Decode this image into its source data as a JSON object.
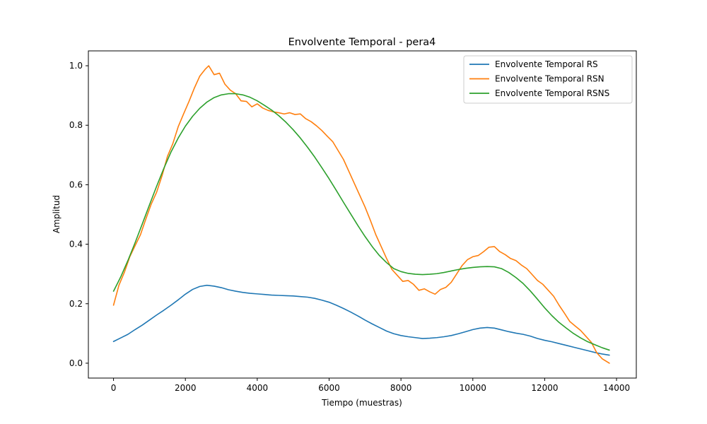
{
  "chart_data": {
    "type": "line",
    "title": "Envolvente Temporal - pera4",
    "xlabel": "Tiempo (muestras)",
    "ylabel": "Amplitud",
    "xlim": [
      -700,
      14550
    ],
    "ylim": [
      -0.05,
      1.05
    ],
    "xticks": [
      0,
      2000,
      4000,
      6000,
      8000,
      10000,
      12000,
      14000
    ],
    "xtick_labels": [
      "0",
      "2000",
      "4000",
      "6000",
      "8000",
      "10000",
      "12000",
      "14000"
    ],
    "yticks": [
      0.0,
      0.2,
      0.4,
      0.6,
      0.8,
      1.0
    ],
    "ytick_labels": [
      "0.0",
      "0.2",
      "0.4",
      "0.6",
      "0.8",
      "1.0"
    ],
    "grid": false,
    "legend_position": "top-right",
    "series": [
      {
        "name": "Envolvente Temporal RS",
        "color": "#1f77b4",
        "x": [
          0,
          200,
          400,
          600,
          800,
          1000,
          1200,
          1400,
          1600,
          1800,
          2000,
          2200,
          2400,
          2600,
          2800,
          3000,
          3200,
          3400,
          3600,
          3800,
          4000,
          4200,
          4400,
          4600,
          4800,
          5000,
          5200,
          5400,
          5600,
          5800,
          6000,
          6200,
          6400,
          6600,
          6800,
          7000,
          7200,
          7400,
          7600,
          7800,
          8000,
          8200,
          8400,
          8600,
          8800,
          9000,
          9200,
          9400,
          9600,
          9800,
          10000,
          10200,
          10400,
          10600,
          10800,
          11000,
          11200,
          11400,
          11600,
          11800,
          12000,
          12200,
          12400,
          12600,
          12800,
          13000,
          13200,
          13400,
          13600,
          13800
        ],
        "values": [
          0.073,
          0.085,
          0.097,
          0.113,
          0.128,
          0.145,
          0.162,
          0.178,
          0.195,
          0.213,
          0.232,
          0.248,
          0.258,
          0.262,
          0.259,
          0.254,
          0.247,
          0.242,
          0.238,
          0.235,
          0.233,
          0.231,
          0.229,
          0.228,
          0.227,
          0.226,
          0.224,
          0.222,
          0.218,
          0.212,
          0.205,
          0.195,
          0.184,
          0.172,
          0.159,
          0.145,
          0.132,
          0.12,
          0.108,
          0.099,
          0.093,
          0.089,
          0.086,
          0.083,
          0.084,
          0.086,
          0.089,
          0.093,
          0.099,
          0.106,
          0.113,
          0.118,
          0.12,
          0.118,
          0.112,
          0.106,
          0.101,
          0.097,
          0.091,
          0.083,
          0.077,
          0.072,
          0.066,
          0.06,
          0.054,
          0.048,
          0.042,
          0.036,
          0.031,
          0.027
        ]
      },
      {
        "name": "Envolvente Temporal RSN",
        "color": "#ff7f0e",
        "x": [
          0,
          150,
          300,
          450,
          600,
          750,
          900,
          1050,
          1200,
          1350,
          1500,
          1650,
          1800,
          1950,
          2100,
          2250,
          2400,
          2550,
          2650,
          2800,
          2950,
          3100,
          3250,
          3400,
          3550,
          3700,
          3850,
          4000,
          4150,
          4300,
          4450,
          4600,
          4750,
          4900,
          5050,
          5200,
          5350,
          5500,
          5650,
          5800,
          5950,
          6100,
          6250,
          6400,
          6550,
          6700,
          6850,
          7000,
          7150,
          7300,
          7450,
          7600,
          7750,
          7900,
          8050,
          8200,
          8350,
          8500,
          8650,
          8800,
          8950,
          9100,
          9250,
          9400,
          9550,
          9700,
          9850,
          10000,
          10150,
          10300,
          10450,
          10600,
          10750,
          10900,
          11050,
          11200,
          11350,
          11500,
          11650,
          11800,
          11950,
          12100,
          12250,
          12400,
          12550,
          12700,
          12850,
          13000,
          13150,
          13300,
          13450,
          13600,
          13800
        ],
        "values": [
          0.195,
          0.262,
          0.305,
          0.357,
          0.395,
          0.432,
          0.485,
          0.535,
          0.575,
          0.63,
          0.695,
          0.738,
          0.795,
          0.838,
          0.88,
          0.925,
          0.965,
          0.988,
          1.0,
          0.97,
          0.975,
          0.938,
          0.918,
          0.906,
          0.882,
          0.88,
          0.862,
          0.872,
          0.858,
          0.85,
          0.845,
          0.842,
          0.838,
          0.842,
          0.836,
          0.838,
          0.822,
          0.812,
          0.798,
          0.782,
          0.763,
          0.745,
          0.715,
          0.685,
          0.645,
          0.605,
          0.565,
          0.525,
          0.48,
          0.432,
          0.392,
          0.352,
          0.315,
          0.295,
          0.275,
          0.278,
          0.265,
          0.245,
          0.25,
          0.24,
          0.232,
          0.248,
          0.255,
          0.272,
          0.3,
          0.328,
          0.348,
          0.358,
          0.362,
          0.375,
          0.39,
          0.392,
          0.375,
          0.365,
          0.352,
          0.345,
          0.33,
          0.318,
          0.298,
          0.278,
          0.265,
          0.245,
          0.225,
          0.195,
          0.168,
          0.14,
          0.125,
          0.11,
          0.09,
          0.07,
          0.035,
          0.015,
          0.0
        ]
      },
      {
        "name": "Envolvente Temporal RSNS",
        "color": "#2ca02c",
        "x": [
          0,
          200,
          400,
          600,
          800,
          1000,
          1200,
          1400,
          1600,
          1800,
          2000,
          2200,
          2400,
          2600,
          2800,
          3000,
          3200,
          3400,
          3600,
          3800,
          4000,
          4200,
          4400,
          4600,
          4800,
          5000,
          5200,
          5400,
          5600,
          5800,
          6000,
          6200,
          6400,
          6600,
          6800,
          7000,
          7200,
          7400,
          7600,
          7800,
          8000,
          8200,
          8400,
          8600,
          8800,
          9000,
          9200,
          9400,
          9600,
          9800,
          10000,
          10200,
          10400,
          10600,
          10800,
          11000,
          11200,
          11400,
          11600,
          11800,
          12000,
          12200,
          12400,
          12600,
          12800,
          13000,
          13200,
          13400,
          13600,
          13800
        ],
        "values": [
          0.242,
          0.29,
          0.345,
          0.405,
          0.468,
          0.532,
          0.595,
          0.655,
          0.71,
          0.757,
          0.797,
          0.83,
          0.857,
          0.878,
          0.893,
          0.902,
          0.906,
          0.906,
          0.902,
          0.894,
          0.882,
          0.867,
          0.851,
          0.832,
          0.81,
          0.785,
          0.757,
          0.726,
          0.693,
          0.657,
          0.62,
          0.581,
          0.541,
          0.502,
          0.463,
          0.426,
          0.392,
          0.362,
          0.338,
          0.318,
          0.308,
          0.302,
          0.299,
          0.298,
          0.299,
          0.301,
          0.305,
          0.31,
          0.315,
          0.319,
          0.322,
          0.324,
          0.325,
          0.324,
          0.318,
          0.305,
          0.288,
          0.268,
          0.243,
          0.215,
          0.186,
          0.16,
          0.137,
          0.118,
          0.1,
          0.085,
          0.072,
          0.062,
          0.052,
          0.044
        ]
      }
    ]
  }
}
